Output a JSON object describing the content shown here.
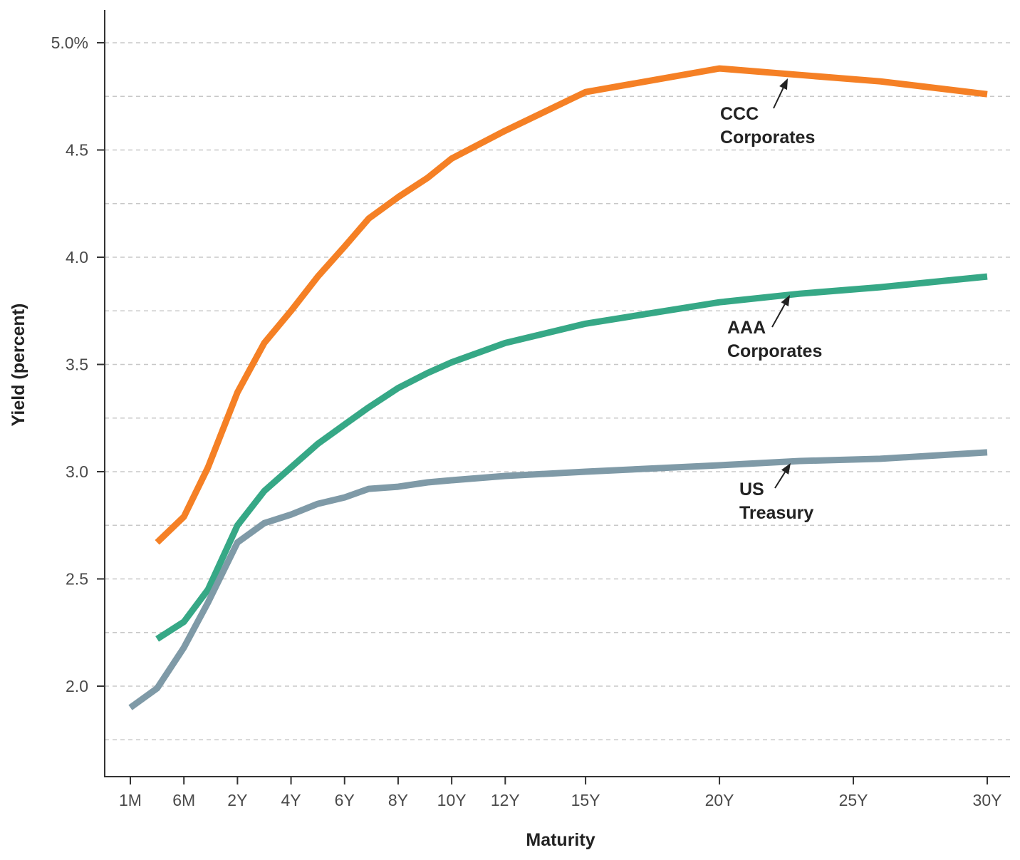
{
  "chart_data": {
    "type": "line",
    "xlabel": "Maturity",
    "ylabel": "Yield (percent)",
    "ylim": [
      1.65,
      5.15
    ],
    "y_ticks": [
      {
        "value": 2.0,
        "label": "2.0"
      },
      {
        "value": 2.5,
        "label": "2.5"
      },
      {
        "value": 3.0,
        "label": "3.0"
      },
      {
        "value": 3.5,
        "label": "3.5"
      },
      {
        "value": 4.0,
        "label": "4.0"
      },
      {
        "value": 4.5,
        "label": "4.5"
      },
      {
        "value": 5.0,
        "label": "5.0%"
      }
    ],
    "y_gridlines": [
      1.75,
      2.0,
      2.25,
      2.5,
      2.75,
      3.0,
      3.25,
      3.5,
      3.75,
      4.0,
      4.25,
      4.5,
      4.75,
      5.0
    ],
    "grid": "horizontal dashed",
    "x_ticks": [
      {
        "label": "1M",
        "pos": 0
      },
      {
        "label": "6M",
        "pos": 1
      },
      {
        "label": "2Y",
        "pos": 2
      },
      {
        "label": "4Y",
        "pos": 3
      },
      {
        "label": "6Y",
        "pos": 4
      },
      {
        "label": "8Y",
        "pos": 5
      },
      {
        "label": "10Y",
        "pos": 6
      },
      {
        "label": "12Y",
        "pos": 7
      },
      {
        "label": "15Y",
        "pos": 8.5
      },
      {
        "label": "20Y",
        "pos": 11
      },
      {
        "label": "25Y",
        "pos": 13.5
      },
      {
        "label": "30Y",
        "pos": 16
      }
    ],
    "series": [
      {
        "name": "CCC Corporates",
        "color": "#f58025",
        "points": [
          [
            0.5,
            2.67
          ],
          [
            1.0,
            2.79
          ],
          [
            1.45,
            3.02
          ],
          [
            2.0,
            3.37
          ],
          [
            2.5,
            3.6
          ],
          [
            3.0,
            3.75
          ],
          [
            3.5,
            3.91
          ],
          [
            4.0,
            4.05
          ],
          [
            4.45,
            4.18
          ],
          [
            5.0,
            4.28
          ],
          [
            5.55,
            4.37
          ],
          [
            6.0,
            4.46
          ],
          [
            7.0,
            4.59
          ],
          [
            8.5,
            4.77
          ],
          [
            11.0,
            4.88
          ],
          [
            12.5,
            4.85
          ],
          [
            14.0,
            4.82
          ],
          [
            16.0,
            4.76
          ]
        ],
        "label_lines": [
          "CCC",
          "Corporates"
        ]
      },
      {
        "name": "AAA Corporates",
        "color": "#36a886",
        "points": [
          [
            0.5,
            2.22
          ],
          [
            1.0,
            2.3
          ],
          [
            1.45,
            2.45
          ],
          [
            2.0,
            2.75
          ],
          [
            2.5,
            2.91
          ],
          [
            3.0,
            3.02
          ],
          [
            3.5,
            3.13
          ],
          [
            4.0,
            3.22
          ],
          [
            4.45,
            3.3
          ],
          [
            5.0,
            3.39
          ],
          [
            5.55,
            3.46
          ],
          [
            6.0,
            3.51
          ],
          [
            7.0,
            3.6
          ],
          [
            8.5,
            3.69
          ],
          [
            11.0,
            3.79
          ],
          [
            12.5,
            3.83
          ],
          [
            14.0,
            3.86
          ],
          [
            16.0,
            3.91
          ]
        ],
        "label_lines": [
          "AAA",
          "Corporates"
        ]
      },
      {
        "name": "US Treasury",
        "color": "#7f9aa7",
        "points": [
          [
            0.0,
            1.9
          ],
          [
            0.5,
            1.99
          ],
          [
            1.0,
            2.18
          ],
          [
            1.45,
            2.39
          ],
          [
            2.0,
            2.67
          ],
          [
            2.5,
            2.76
          ],
          [
            3.0,
            2.8
          ],
          [
            3.5,
            2.85
          ],
          [
            4.0,
            2.88
          ],
          [
            4.45,
            2.92
          ],
          [
            5.0,
            2.93
          ],
          [
            5.55,
            2.95
          ],
          [
            6.0,
            2.96
          ],
          [
            7.0,
            2.98
          ],
          [
            8.5,
            3.0
          ],
          [
            11.0,
            3.03
          ],
          [
            12.5,
            3.05
          ],
          [
            14.0,
            3.06
          ],
          [
            16.0,
            3.09
          ]
        ],
        "label_lines": [
          "US",
          "Treasury"
        ]
      }
    ]
  }
}
